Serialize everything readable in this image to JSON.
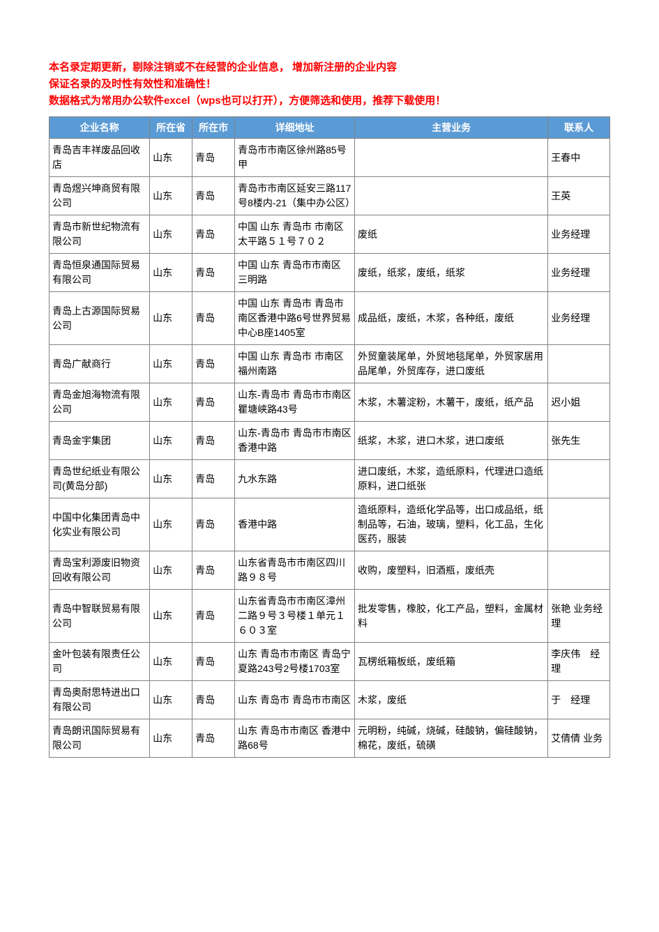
{
  "intro": {
    "line1": "本名录定期更新，剔除注销或不在经营的企业信息， 增加新注册的企业内容",
    "line2": "保证名录的及时性有效性和准确性！",
    "line3": "数据格式为常用办公软件excel（wps也可以打开），方便筛选和使用，推荐下载使用！"
  },
  "table": {
    "headers": {
      "name": "企业名称",
      "province": "所在省",
      "city": "所在市",
      "address": "详细地址",
      "business": "主营业务",
      "contact": "联系人"
    },
    "rows": [
      {
        "name": "青岛吉丰祥废品回收店",
        "province": "山东",
        "city": "青岛",
        "address": "青岛市市南区徐州路85号甲",
        "business": "",
        "contact": "王春中"
      },
      {
        "name": "青岛煜兴坤商贸有限公司",
        "province": "山东",
        "city": "青岛",
        "address": "青岛市市南区延安三路117号8楼内-21（集中办公区）",
        "business": "",
        "contact": "王英"
      },
      {
        "name": "青岛市新世纪物流有限公司",
        "province": "山东",
        "city": "青岛",
        "address": "中国 山东 青岛市 市南区太平路５１号７０２",
        "business": "废纸",
        "contact": "业务经理"
      },
      {
        "name": "青岛恒泉通国际贸易有限公司",
        "province": "山东",
        "city": "青岛",
        "address": "中国 山东 青岛市市南区 三明路",
        "business": "废纸，纸浆，废纸，纸浆",
        "contact": "业务经理"
      },
      {
        "name": "青岛上古源国际贸易公司",
        "province": "山东",
        "city": "青岛",
        "address": "中国 山东 青岛市 青岛市南区香港中路6号世界贸易中心B座1405室",
        "business": "成品纸，废纸，木浆，各种纸，废纸",
        "contact": "业务经理"
      },
      {
        "name": "青岛广献商行",
        "province": "山东",
        "city": "青岛",
        "address": "中国 山东 青岛市 市南区福州南路",
        "business": "外贸童装尾单，外贸地毯尾单，外贸家居用品尾单，外贸库存，进口废纸",
        "contact": ""
      },
      {
        "name": "青岛金旭海物流有限公司",
        "province": "山东",
        "city": "青岛",
        "address": "山东-青岛市 青岛市市南区瞿塘峡路43号",
        "business": "木浆，木薯淀粉，木薯干，废纸，纸产品",
        "contact": "迟小姐"
      },
      {
        "name": "青岛金宇集团",
        "province": "山东",
        "city": "青岛",
        "address": "山东-青岛市 青岛市市南区香港中路",
        "business": "纸浆，木浆，进口木浆，进口废纸",
        "contact": "张先生"
      },
      {
        "name": "青岛世纪纸业有限公司(黄岛分部)",
        "province": "山东",
        "city": "青岛",
        "address": "九水东路",
        "business": "进口废纸，木浆，造纸原料，代理进口造纸原料，进口纸张",
        "contact": ""
      },
      {
        "name": "中国中化集团青岛中化实业有限公司",
        "province": "山东",
        "city": "青岛",
        "address": "香港中路",
        "business": "造纸原料，造纸化学品等，出口成品纸，纸制品等，石油，玻璃，塑料，化工品，生化医药，服装",
        "contact": ""
      },
      {
        "name": "青岛宝利源废旧物资回收有限公司",
        "province": "山东",
        "city": "青岛",
        "address": "山东省青岛市市南区四川路９８号",
        "business": "收购，废塑料，旧酒瓶，废纸壳",
        "contact": ""
      },
      {
        "name": "青岛中智联贸易有限公司",
        "province": "山东",
        "city": "青岛",
        "address": "山东省青岛市市南区漳州二路９号３号楼１单元１６０３室",
        "business": "批发零售，橡胶，化工产品，塑料，金属材料",
        "contact": "张艳 业务经理"
      },
      {
        "name": "金叶包装有限责任公司",
        "province": "山东",
        "city": "青岛",
        "address": "山东 青岛市市南区 青岛宁夏路243号2号楼1703室",
        "business": "瓦楞纸箱板纸，废纸箱",
        "contact": "李庆伟　经理"
      },
      {
        "name": "青岛奥耐思特进出口有限公司",
        "province": "山东",
        "city": "青岛",
        "address": "山东 青岛市 青岛市市南区",
        "business": "木浆，废纸",
        "contact": "于　经理"
      },
      {
        "name": "青岛朗讯国际贸易有限公司",
        "province": "山东",
        "city": "青岛",
        "address": "山东 青岛市市南区 香港中路68号",
        "business": "元明粉，纯碱，烧碱，硅酸钠，偏硅酸钠，棉花，废纸，硫磺",
        "contact": "艾倩倩 业务"
      }
    ]
  },
  "styling": {
    "header_bg": "#5b9bd5",
    "header_color": "#ffffff",
    "border_color": "#808080",
    "intro_color": "#ff0000",
    "body_bg": "#ffffff",
    "cell_color": "#000000",
    "font_family": "Microsoft YaHei",
    "intro_fontsize": 15,
    "header_fontsize": 14,
    "cell_fontsize": 14,
    "column_widths": {
      "name": 130,
      "province": 55,
      "city": 55,
      "address": 155,
      "business": 250,
      "contact": 80
    }
  }
}
